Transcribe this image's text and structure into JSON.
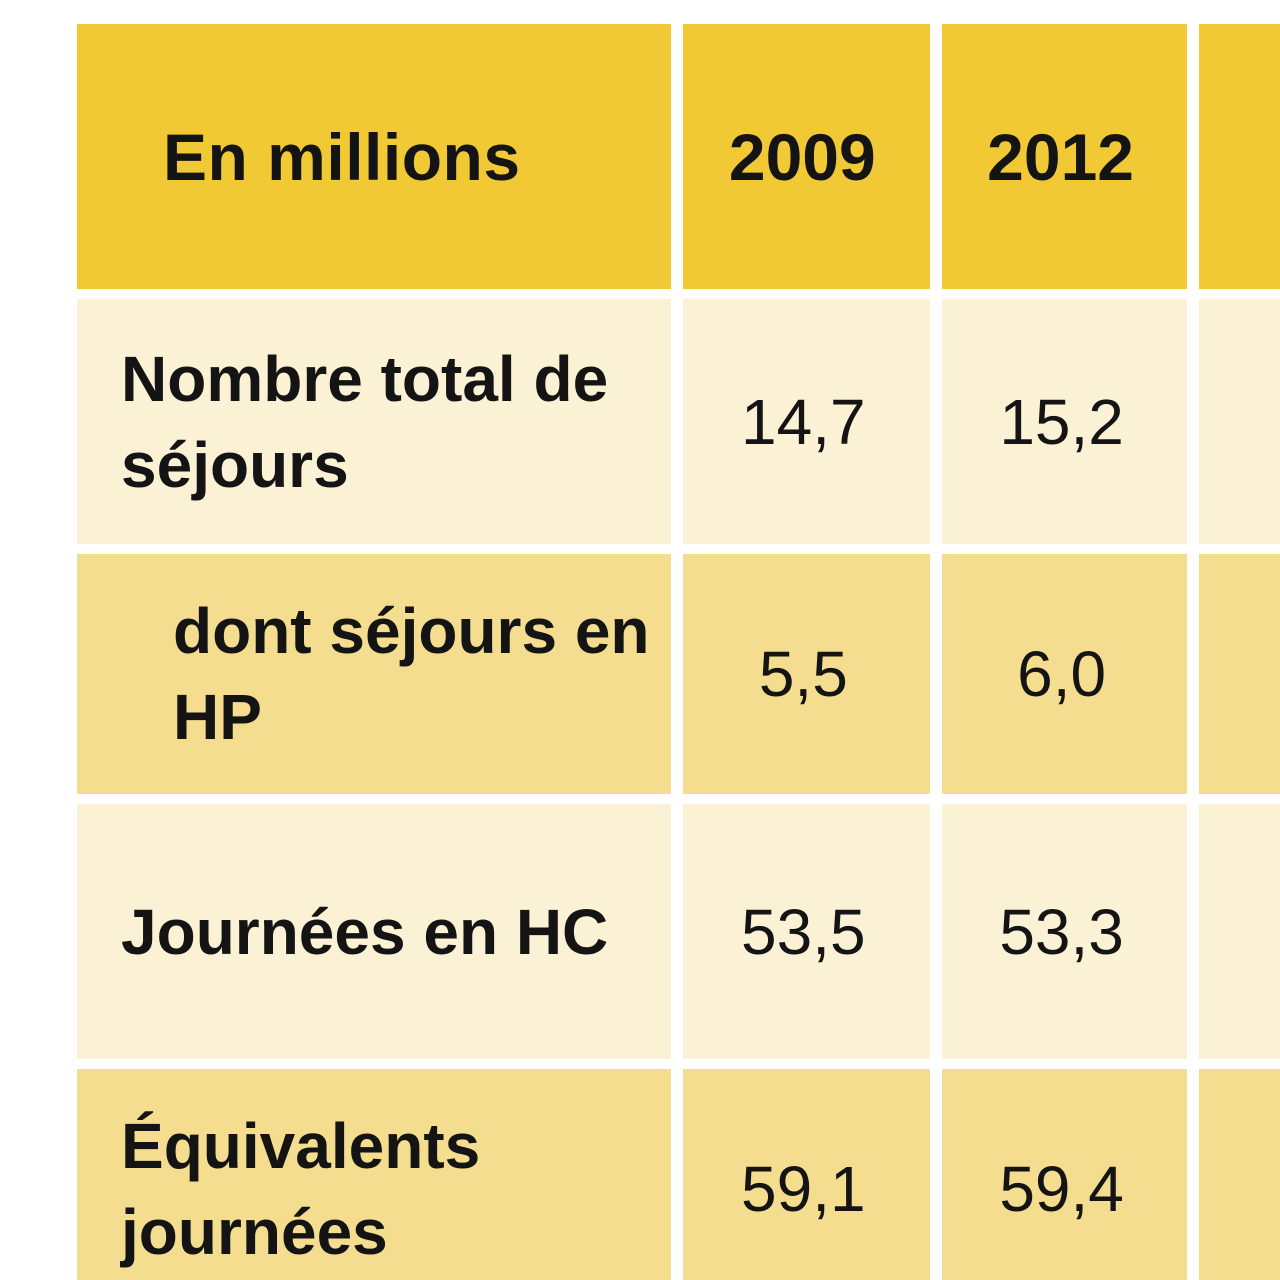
{
  "chart_data": {
    "type": "table",
    "header": {
      "label": "En millions",
      "years": [
        "2009",
        "2012"
      ]
    },
    "rows": [
      {
        "label": "Nombre total de séjours",
        "values": [
          "14,7",
          "15,2"
        ]
      },
      {
        "label": "dont séjours en HP",
        "values": [
          "5,5",
          "6,0"
        ]
      },
      {
        "label": "Journées en HC",
        "values": [
          "53,5",
          "53,3"
        ]
      },
      {
        "label": "Équivalents journées",
        "values": [
          "59,1",
          "59,4"
        ]
      }
    ]
  },
  "colors": {
    "header_bg": "#f1c935",
    "row_light_bg": "#fbf1d4",
    "row_dark_bg": "#f5dd8f"
  }
}
